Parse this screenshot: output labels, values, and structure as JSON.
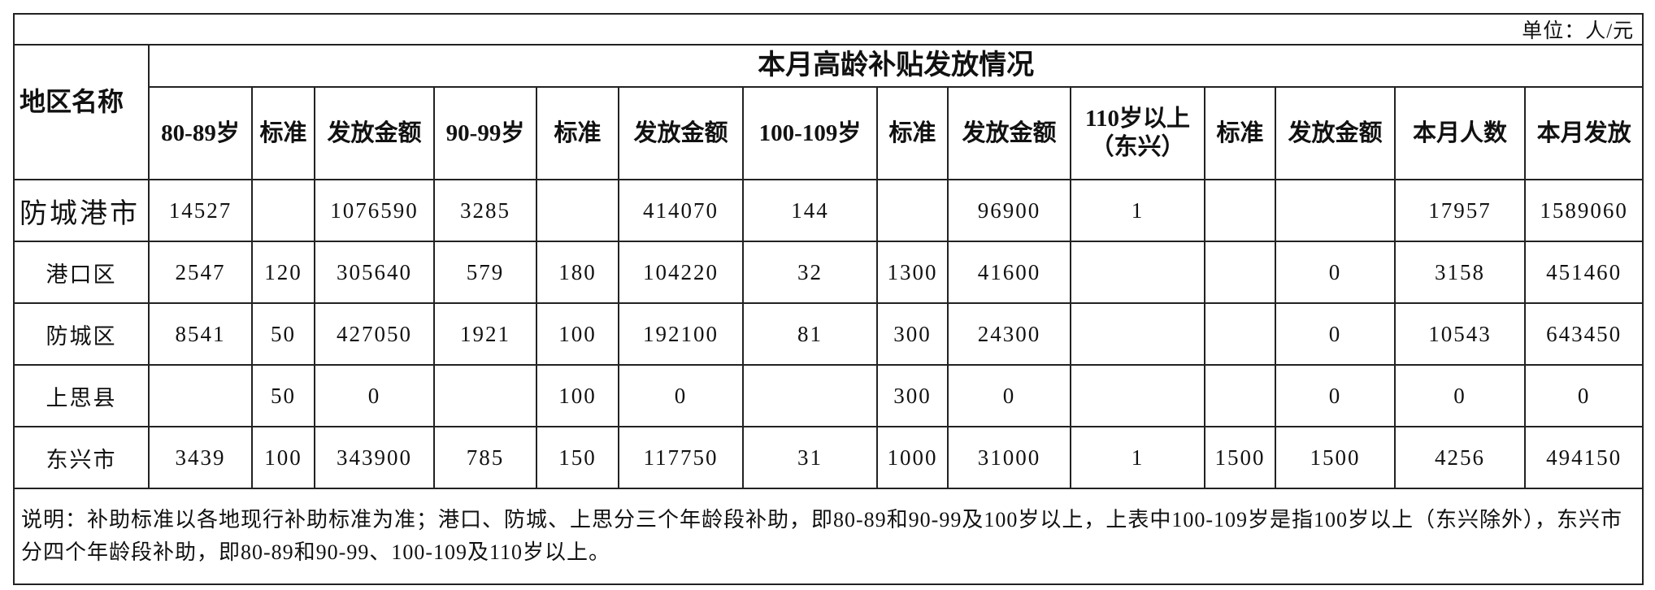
{
  "header": {
    "unit": "单位：人/元",
    "title": "本月高龄补贴发放情况"
  },
  "table": {
    "columns": [
      "地区名称",
      "80-89岁",
      "标准",
      "发放金额",
      "90-99岁",
      "标准",
      "发放金额",
      "100-109岁",
      "标准",
      "发放金额",
      "110岁以上\n（东兴）",
      "标准",
      "发放金额",
      "本月人数",
      "本月发放"
    ],
    "rows": [
      [
        "防城港市",
        14527,
        null,
        1076590,
        3285,
        null,
        414070,
        144,
        null,
        96900,
        1,
        null,
        null,
        17957,
        1589060
      ],
      [
        "港口区",
        2547,
        120,
        305640,
        579,
        180,
        104220,
        32,
        1300,
        41600,
        null,
        null,
        0,
        3158,
        451460
      ],
      [
        "防城区",
        8541,
        50,
        427050,
        1921,
        100,
        192100,
        81,
        300,
        24300,
        null,
        null,
        0,
        10543,
        643450
      ],
      [
        "上思县",
        null,
        50,
        0,
        null,
        100,
        0,
        null,
        300,
        0,
        null,
        null,
        0,
        0,
        0
      ],
      [
        "东兴市",
        3439,
        100,
        343900,
        785,
        150,
        117750,
        31,
        1000,
        31000,
        1,
        1500,
        1500,
        4256,
        494150
      ]
    ]
  },
  "note": "说明：补助标准以各地现行补助标准为准；港口、防城、上思分三个年龄段补助，即80-89和90-99及100岁以上，上表中100-109岁是指100岁以上（东兴除外），东兴市分四个年龄段补助，即80-89和90-99、100-109及110岁以上。"
}
